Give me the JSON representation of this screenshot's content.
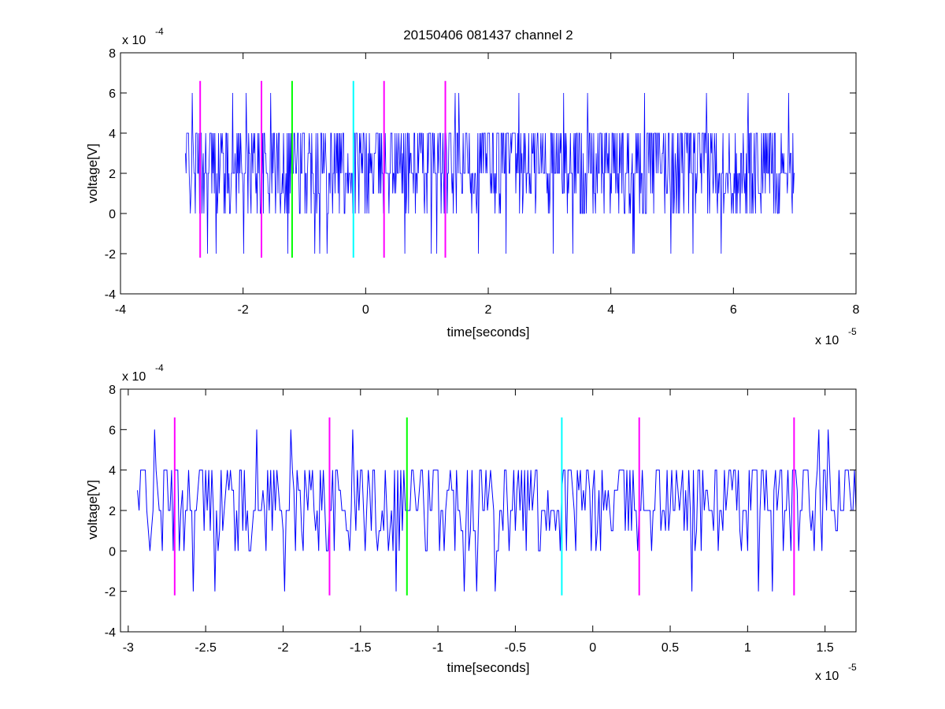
{
  "chart_data": [
    {
      "type": "line",
      "title": "20150406 081437 channel 2",
      "xlabel": "time[seconds]",
      "ylabel": "voltage[V]",
      "x_multiplier": "x 10",
      "x_exponent": "-5",
      "y_multiplier": "x 10",
      "y_exponent": "-4",
      "xlim": [
        -4,
        8
      ],
      "ylim": [
        -4,
        8
      ],
      "xticks": [
        "-4",
        "-2",
        "0",
        "2",
        "4",
        "6",
        "8"
      ],
      "yticks": [
        "-4",
        "-2",
        "0",
        "2",
        "4",
        "6",
        "8"
      ],
      "series": [
        {
          "color": "#0000ff",
          "x_range": [
            -2.94,
            7.0
          ],
          "level_values": [
            -2,
            0,
            1,
            2,
            3,
            4,
            6
          ]
        }
      ],
      "markers": [
        {
          "x": -2.7,
          "color": "#ff00ff"
        },
        {
          "x": -1.7,
          "color": "#ff00ff"
        },
        {
          "x": -1.2,
          "color": "#00ff00"
        },
        {
          "x": -0.2,
          "color": "#00ffff"
        },
        {
          "x": 0.3,
          "color": "#ff00ff"
        },
        {
          "x": 1.3,
          "color": "#ff00ff"
        }
      ],
      "marker_yrange": [
        -2.2,
        6.6
      ],
      "grid": false
    },
    {
      "type": "line",
      "title": "",
      "xlabel": "time[seconds]",
      "ylabel": "voltage[V]",
      "x_multiplier": "x 10",
      "x_exponent": "-5",
      "y_multiplier": "x 10",
      "y_exponent": "-4",
      "xlim": [
        -3.05,
        1.7
      ],
      "ylim": [
        -4,
        8
      ],
      "xticks": [
        "-3",
        "-2.5",
        "-2",
        "-1.5",
        "-1",
        "-0.5",
        "0",
        "0.5",
        "1",
        "1.5"
      ],
      "xtick_values": [
        -3,
        -2.5,
        -2,
        -1.5,
        -1,
        -0.5,
        0,
        0.5,
        1,
        1.5
      ],
      "yticks": [
        "-4",
        "-2",
        "0",
        "2",
        "4",
        "6",
        "8"
      ],
      "series": [
        {
          "color": "#0000ff",
          "x_range": [
            -2.94,
            1.7
          ],
          "level_values": [
            -2,
            0,
            1,
            2,
            3,
            4,
            6
          ]
        }
      ],
      "markers": [
        {
          "x": -2.7,
          "color": "#ff00ff"
        },
        {
          "x": -1.7,
          "color": "#ff00ff"
        },
        {
          "x": -1.2,
          "color": "#00ff00"
        },
        {
          "x": -0.2,
          "color": "#00ffff"
        },
        {
          "x": 0.3,
          "color": "#ff00ff"
        },
        {
          "x": 1.3,
          "color": "#ff00ff"
        }
      ],
      "marker_yrange": [
        -2.2,
        6.6
      ],
      "grid": false
    }
  ]
}
